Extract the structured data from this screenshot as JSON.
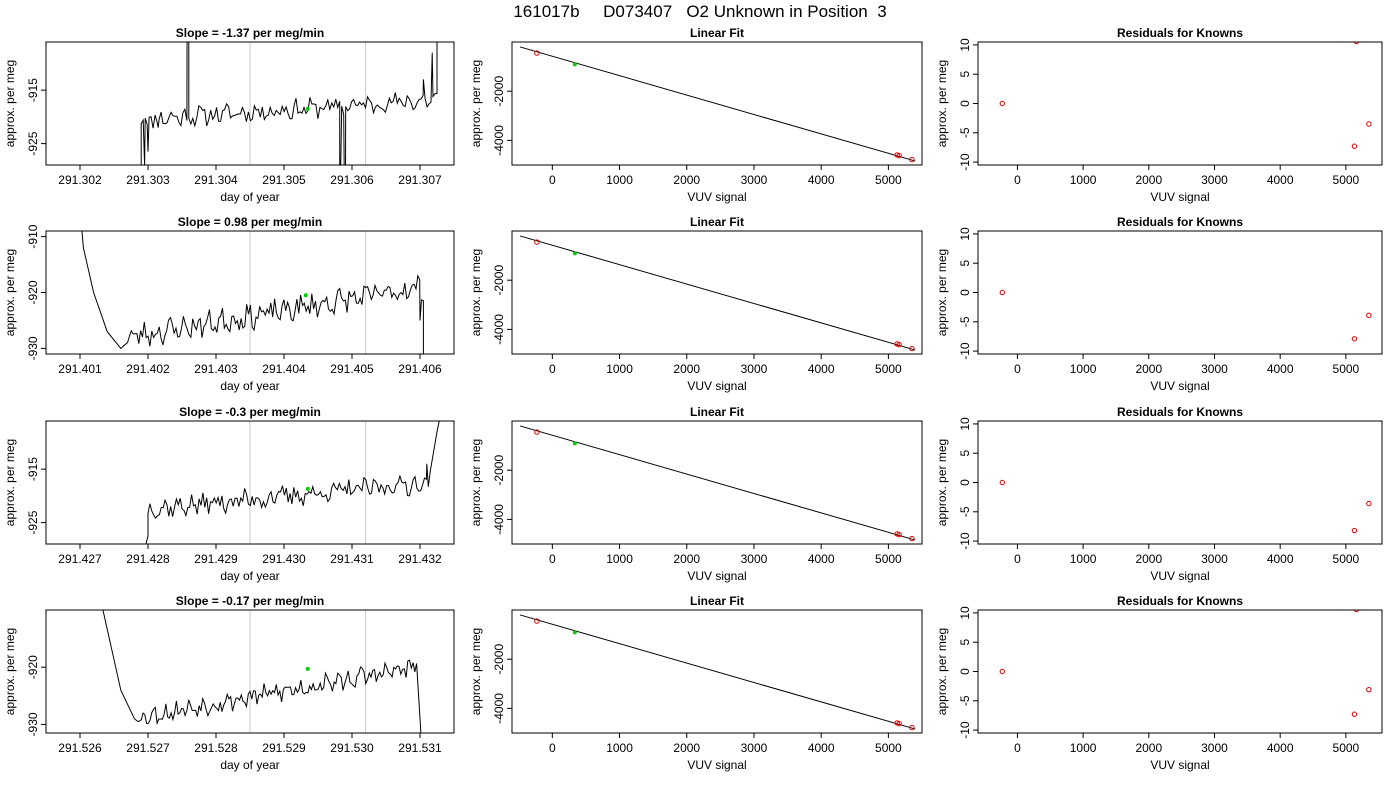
{
  "page": {
    "title": "161017b     D073407   O2 Unknown in Position  3"
  },
  "colors": {
    "trace": "#000000",
    "marker_green": "#00cc00",
    "marker_red": "#dd0000",
    "vline": "#c8c8c8",
    "frame": "#000000"
  },
  "chart_data": [
    {
      "type": "line",
      "row": 1,
      "title": "Slope =  -1.37  per meg/min",
      "xlabel": "day of year",
      "ylabel": "approx. per meg",
      "xlim": [
        291.3015,
        291.3075
      ],
      "ylim": [
        -929,
        -906
      ],
      "xticks": [
        "291.302",
        "291.303",
        "291.304",
        "291.305",
        "291.306",
        "291.307"
      ],
      "xtick_values": [
        291.302,
        291.303,
        291.304,
        291.305,
        291.306,
        291.307
      ],
      "yticks": [
        "-925",
        "-915"
      ],
      "ytick_values": [
        -925,
        -915
      ],
      "vlines": [
        291.3045,
        291.3062
      ],
      "marker": {
        "x": 291.30535,
        "y": -918.5
      },
      "trace": {
        "x_start": 291.3029,
        "x_end": 291.30725,
        "n": 150,
        "seed": 11,
        "base_start": -920.5,
        "base_end": -916.8,
        "amp": 1.5,
        "head": [
          [
            291.3029,
            -931
          ],
          [
            291.30295,
            -929
          ],
          [
            291.303,
            -926.5
          ],
          [
            291.30315,
            -922
          ]
        ],
        "tail": [
          [
            291.30705,
            -913
          ],
          [
            291.30718,
            -908
          ],
          [
            291.30725,
            -905
          ]
        ],
        "spikes": [
          [
            291.30358,
            -870
          ],
          [
            291.3036,
            -880
          ],
          [
            291.30582,
            -940
          ],
          [
            291.3059,
            -950
          ]
        ]
      }
    },
    {
      "type": "line",
      "row": 2,
      "title": "Slope =  0.98  per meg/min",
      "xlabel": "day of year",
      "ylabel": "approx. per meg",
      "xlim": [
        291.4005,
        291.4065
      ],
      "ylim": [
        -931,
        -909
      ],
      "xticks": [
        "291.401",
        "291.402",
        "291.403",
        "291.404",
        "291.405",
        "291.406"
      ],
      "xtick_values": [
        291.401,
        291.402,
        291.403,
        291.404,
        291.405,
        291.406
      ],
      "yticks": [
        "-930",
        "-920",
        "-910"
      ],
      "ytick_values": [
        -930,
        -920,
        -910
      ],
      "vlines": [
        291.4035,
        291.4052
      ],
      "marker": {
        "x": 291.40432,
        "y": -920.5
      },
      "trace": {
        "x_start": 291.4017,
        "x_end": 291.40605,
        "n": 160,
        "seed": 23,
        "base_start": -928,
        "base_end": -919,
        "amp": 1.8,
        "head": [
          [
            291.401,
            -905
          ],
          [
            291.40105,
            -912
          ],
          [
            291.4012,
            -920
          ],
          [
            291.4014,
            -927
          ],
          [
            291.4016,
            -930
          ]
        ],
        "tail": [
          [
            291.406,
            -925
          ],
          [
            291.40605,
            -932
          ]
        ],
        "spikes": []
      }
    },
    {
      "type": "line",
      "row": 3,
      "title": "Slope =  -0.3  per meg/min",
      "xlabel": "day of year",
      "ylabel": "approx. per meg",
      "xlim": [
        291.4265,
        291.4325
      ],
      "ylim": [
        -929,
        -906
      ],
      "xticks": [
        "291.427",
        "291.428",
        "291.429",
        "291.430",
        "291.431",
        "291.432"
      ],
      "xtick_values": [
        291.427,
        291.428,
        291.429,
        291.43,
        291.431,
        291.432
      ],
      "yticks": [
        "-925",
        "-915"
      ],
      "ytick_values": [
        -925,
        -915
      ],
      "vlines": [
        291.4295,
        291.4312
      ],
      "marker": {
        "x": 291.43035,
        "y": -918.7
      },
      "trace": {
        "x_start": 291.428,
        "x_end": 291.43215,
        "n": 150,
        "seed": 37,
        "base_start": -922.5,
        "base_end": -917.5,
        "amp": 1.6,
        "head": [
          [
            291.42795,
            -930
          ],
          [
            291.428,
            -927.5
          ]
        ],
        "tail": [
          [
            291.4321,
            -914
          ],
          [
            291.43225,
            -908
          ],
          [
            291.4323,
            -905
          ]
        ],
        "spikes": []
      }
    },
    {
      "type": "line",
      "row": 4,
      "title": "Slope =  -0.17  per meg/min",
      "xlabel": "day of year",
      "ylabel": "approx. per meg",
      "xlim": [
        291.5255,
        291.5315
      ],
      "ylim": [
        -931.5,
        -910
      ],
      "xticks": [
        "291.526",
        "291.527",
        "291.528",
        "291.529",
        "291.530",
        "291.531"
      ],
      "xtick_values": [
        291.526,
        291.527,
        291.528,
        291.529,
        291.53,
        291.531
      ],
      "yticks": [
        "-930",
        "-920"
      ],
      "ytick_values": [
        -930,
        -920
      ],
      "vlines": [
        291.5285,
        291.5302
      ],
      "marker": {
        "x": 291.52935,
        "y": -920.3
      },
      "trace": {
        "x_start": 291.52685,
        "x_end": 291.53095,
        "n": 160,
        "seed": 53,
        "base_start": -928.8,
        "base_end": -920,
        "amp": 1.4,
        "head": [
          [
            291.5263,
            -908
          ],
          [
            291.52645,
            -916
          ],
          [
            291.5266,
            -924
          ],
          [
            291.5268,
            -929
          ]
        ],
        "tail": [
          [
            291.53098,
            -925
          ],
          [
            291.53102,
            -933
          ]
        ],
        "spikes": []
      }
    },
    {
      "type": "scatter",
      "row": 1,
      "title": "Linear Fit",
      "xlabel": "VUV signal",
      "ylabel": "approx. per meg",
      "xlim": [
        -600,
        5500
      ],
      "ylim": [
        -5000,
        0
      ],
      "xticks": [
        "0",
        "1000",
        "2000",
        "3000",
        "4000",
        "5000"
      ],
      "xtick_values": [
        0,
        1000,
        2000,
        3000,
        4000,
        5000
      ],
      "yticks": [
        "-4000",
        "-2000"
      ],
      "ytick_values": [
        -4000,
        -2000
      ],
      "fit_line": [
        [
          -480,
          -200
        ],
        [
          5400,
          -4840
        ]
      ],
      "known_points": [
        {
          "x": -230,
          "y": -450
        },
        {
          "x": 5130,
          "y": -4590
        },
        {
          "x": 5160,
          "y": -4620
        },
        {
          "x": 5350,
          "y": -4780
        }
      ],
      "unknown_point": {
        "x": 335,
        "y": -910
      }
    },
    {
      "type": "scatter",
      "row": 2,
      "title": "Linear Fit",
      "xlabel": "VUV signal",
      "ylabel": "approx. per meg",
      "xlim": [
        -600,
        5500
      ],
      "ylim": [
        -5000,
        0
      ],
      "xticks": [
        "0",
        "1000",
        "2000",
        "3000",
        "4000",
        "5000"
      ],
      "xtick_values": [
        0,
        1000,
        2000,
        3000,
        4000,
        5000
      ],
      "yticks": [
        "-4000",
        "-2000"
      ],
      "ytick_values": [
        -4000,
        -2000
      ],
      "fit_line": [
        [
          -480,
          -200
        ],
        [
          5400,
          -4840
        ]
      ],
      "known_points": [
        {
          "x": -230,
          "y": -450
        },
        {
          "x": 5130,
          "y": -4590
        },
        {
          "x": 5160,
          "y": -4620
        },
        {
          "x": 5350,
          "y": -4780
        }
      ],
      "unknown_point": {
        "x": 335,
        "y": -910
      }
    },
    {
      "type": "scatter",
      "row": 3,
      "title": "Linear Fit",
      "xlabel": "VUV signal",
      "ylabel": "approx. per meg",
      "xlim": [
        -600,
        5500
      ],
      "ylim": [
        -5000,
        0
      ],
      "xticks": [
        "0",
        "1000",
        "2000",
        "3000",
        "4000",
        "5000"
      ],
      "xtick_values": [
        0,
        1000,
        2000,
        3000,
        4000,
        5000
      ],
      "yticks": [
        "-4000",
        "-2000"
      ],
      "ytick_values": [
        -4000,
        -2000
      ],
      "fit_line": [
        [
          -480,
          -200
        ],
        [
          5400,
          -4840
        ]
      ],
      "known_points": [
        {
          "x": -230,
          "y": -450
        },
        {
          "x": 5130,
          "y": -4590
        },
        {
          "x": 5160,
          "y": -4620
        },
        {
          "x": 5350,
          "y": -4780
        }
      ],
      "unknown_point": {
        "x": 335,
        "y": -910
      }
    },
    {
      "type": "scatter",
      "row": 4,
      "title": "Linear Fit",
      "xlabel": "VUV signal",
      "ylabel": "approx. per meg",
      "xlim": [
        -600,
        5500
      ],
      "ylim": [
        -5000,
        0
      ],
      "xticks": [
        "0",
        "1000",
        "2000",
        "3000",
        "4000",
        "5000"
      ],
      "xtick_values": [
        0,
        1000,
        2000,
        3000,
        4000,
        5000
      ],
      "yticks": [
        "-4000",
        "-2000"
      ],
      "ytick_values": [
        -4000,
        -2000
      ],
      "fit_line": [
        [
          -480,
          -200
        ],
        [
          5400,
          -4840
        ]
      ],
      "known_points": [
        {
          "x": -230,
          "y": -450
        },
        {
          "x": 5130,
          "y": -4590
        },
        {
          "x": 5160,
          "y": -4620
        },
        {
          "x": 5350,
          "y": -4780
        }
      ],
      "unknown_point": {
        "x": 335,
        "y": -910
      }
    },
    {
      "type": "scatter",
      "row": 1,
      "title": "Residuals for Knowns",
      "xlabel": "VUV signal",
      "ylabel": "approx. per meg",
      "xlim": [
        -600,
        5550
      ],
      "ylim": [
        -10.5,
        10.5
      ],
      "xticks": [
        "0",
        "1000",
        "2000",
        "3000",
        "4000",
        "5000"
      ],
      "xtick_values": [
        0,
        1000,
        2000,
        3000,
        4000,
        5000
      ],
      "yticks": [
        "-10",
        "-5",
        "0",
        "5",
        "10"
      ],
      "ytick_values": [
        -10,
        -5,
        0,
        5,
        10
      ],
      "points": [
        {
          "x": -230,
          "y": 0
        },
        {
          "x": 5130,
          "y": -7.3
        },
        {
          "x": 5160,
          "y": 10.6
        },
        {
          "x": 5350,
          "y": -3.5
        }
      ]
    },
    {
      "type": "scatter",
      "row": 2,
      "title": "Residuals for Knowns",
      "xlabel": "VUV signal",
      "ylabel": "approx. per meg",
      "xlim": [
        -600,
        5550
      ],
      "ylim": [
        -10.5,
        10.5
      ],
      "xticks": [
        "0",
        "1000",
        "2000",
        "3000",
        "4000",
        "5000"
      ],
      "xtick_values": [
        0,
        1000,
        2000,
        3000,
        4000,
        5000
      ],
      "yticks": [
        "-10",
        "-5",
        "0",
        "5",
        "10"
      ],
      "ytick_values": [
        -10,
        -5,
        0,
        5,
        10
      ],
      "points": [
        {
          "x": -230,
          "y": 0
        },
        {
          "x": 5130,
          "y": -7.9
        },
        {
          "x": 5350,
          "y": -3.9
        }
      ]
    },
    {
      "type": "scatter",
      "row": 3,
      "title": "Residuals for Knowns",
      "xlabel": "VUV signal",
      "ylabel": "approx. per meg",
      "xlim": [
        -600,
        5550
      ],
      "ylim": [
        -10.5,
        10.5
      ],
      "xticks": [
        "0",
        "1000",
        "2000",
        "3000",
        "4000",
        "5000"
      ],
      "xtick_values": [
        0,
        1000,
        2000,
        3000,
        4000,
        5000
      ],
      "yticks": [
        "-10",
        "-5",
        "0",
        "5",
        "10"
      ],
      "ytick_values": [
        -10,
        -5,
        0,
        5,
        10
      ],
      "points": [
        {
          "x": -230,
          "y": 0
        },
        {
          "x": 5130,
          "y": -8.2
        },
        {
          "x": 5350,
          "y": -3.6
        }
      ]
    },
    {
      "type": "scatter",
      "row": 4,
      "title": "Residuals for Knowns",
      "xlabel": "VUV signal",
      "ylabel": "approx. per meg",
      "xlim": [
        -600,
        5550
      ],
      "ylim": [
        -10.5,
        10.5
      ],
      "xticks": [
        "0",
        "1000",
        "2000",
        "3000",
        "4000",
        "5000"
      ],
      "xtick_values": [
        0,
        1000,
        2000,
        3000,
        4000,
        5000
      ],
      "yticks": [
        "-10",
        "-5",
        "0",
        "5",
        "10"
      ],
      "ytick_values": [
        -10,
        -5,
        0,
        5,
        10
      ],
      "points": [
        {
          "x": -230,
          "y": 0
        },
        {
          "x": 5130,
          "y": -7.3
        },
        {
          "x": 5160,
          "y": 10.6
        },
        {
          "x": 5350,
          "y": -3.1
        }
      ]
    }
  ]
}
